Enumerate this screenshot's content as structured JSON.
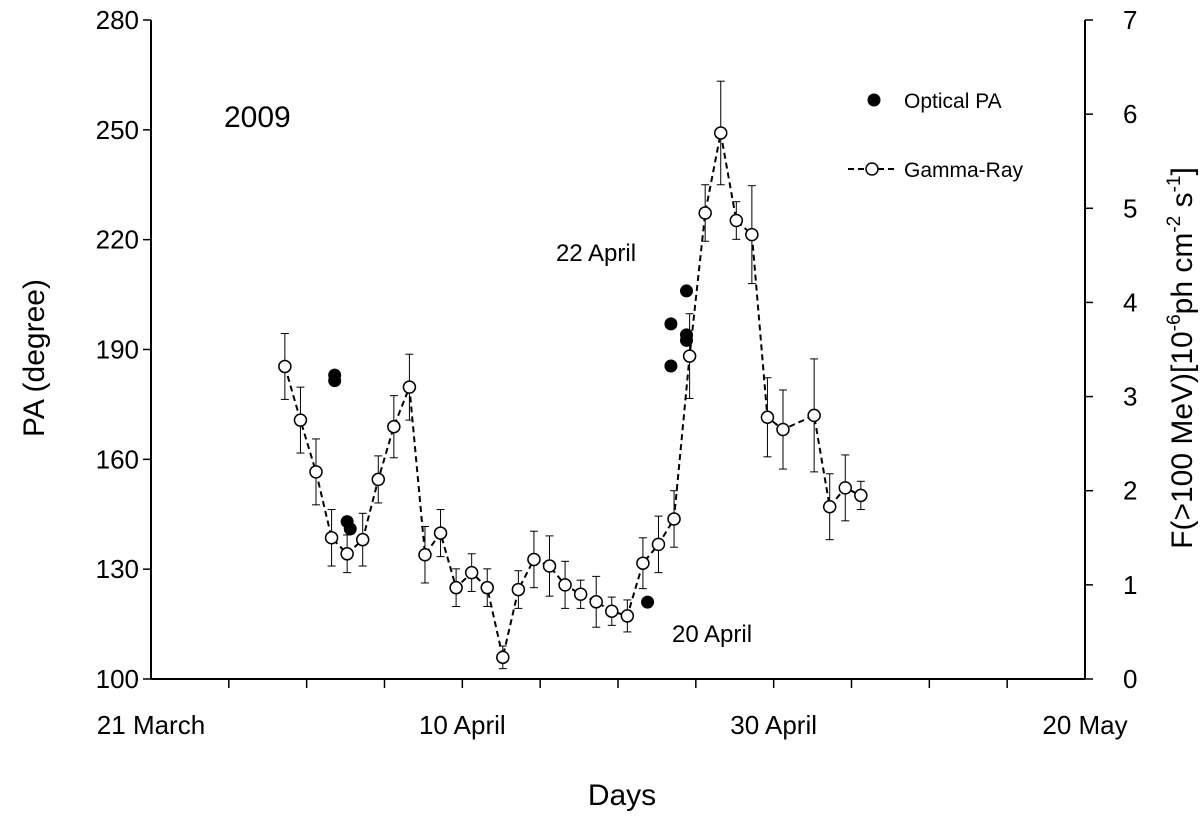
{
  "chart_data": {
    "type": "scatter",
    "year_label": "2009",
    "xlabel": "Days",
    "ylabel_left": "PA (degree)",
    "ylabel_right_parts": {
      "pre": "F(>100 MeV)[10",
      "exp1": "-6",
      "mid": "ph cm",
      "exp2": "-2",
      "mid2": " s",
      "exp3": "-1",
      "post": "]"
    },
    "x_axis": {
      "unit": "days since 21 March",
      "range": [
        0,
        60
      ],
      "minor_ticks": [
        5,
        10,
        15,
        20,
        25,
        30,
        35,
        40,
        45,
        50,
        55
      ],
      "tick_labels": [
        {
          "x": 0,
          "label": "21 March"
        },
        {
          "x": 20,
          "label": "10 April"
        },
        {
          "x": 40,
          "label": "30 April"
        },
        {
          "x": 60,
          "label": "20 May"
        }
      ]
    },
    "y_left": {
      "range": [
        100,
        280
      ],
      "ticks": [
        100,
        130,
        160,
        190,
        220,
        250,
        280
      ]
    },
    "y_right": {
      "range": [
        0,
        7
      ],
      "ticks": [
        0,
        1,
        2,
        3,
        4,
        5,
        6,
        7
      ]
    },
    "legend": {
      "position": "top-right",
      "entries": [
        {
          "label": "Optical PA",
          "marker": "filled-circle"
        },
        {
          "label": "Gamma-Ray",
          "marker": "open-circle-dashed-line"
        }
      ]
    },
    "annotations": [
      {
        "text": "22 April",
        "near_x": 32
      },
      {
        "text": "20 April",
        "near_x": 30
      }
    ],
    "series": [
      {
        "name": "Optical PA",
        "axis": "left",
        "points": [
          {
            "x": 11.8,
            "y": 183
          },
          {
            "x": 11.8,
            "y": 181.5
          },
          {
            "x": 12.6,
            "y": 143
          },
          {
            "x": 12.8,
            "y": 141
          },
          {
            "x": 31.9,
            "y": 121
          },
          {
            "x": 33.4,
            "y": 197
          },
          {
            "x": 33.4,
            "y": 185.5
          },
          {
            "x": 34.4,
            "y": 206
          },
          {
            "x": 34.4,
            "y": 194
          },
          {
            "x": 34.4,
            "y": 192.5
          }
        ]
      },
      {
        "name": "Gamma-Ray",
        "axis": "right",
        "points": [
          {
            "x": 8.6,
            "y": 3.32,
            "err": 0.35
          },
          {
            "x": 9.6,
            "y": 2.75,
            "err": 0.35
          },
          {
            "x": 10.6,
            "y": 2.2,
            "err": 0.35
          },
          {
            "x": 11.6,
            "y": 1.5,
            "err": 0.3
          },
          {
            "x": 12.6,
            "y": 1.33,
            "err": 0.2
          },
          {
            "x": 13.6,
            "y": 1.48,
            "err": 0.28
          },
          {
            "x": 14.6,
            "y": 2.12,
            "err": 0.25
          },
          {
            "x": 15.6,
            "y": 2.68,
            "err": 0.33
          },
          {
            "x": 16.6,
            "y": 3.1,
            "err": 0.35
          },
          {
            "x": 17.6,
            "y": 1.32,
            "err": 0.3
          },
          {
            "x": 18.6,
            "y": 1.55,
            "err": 0.25
          },
          {
            "x": 19.6,
            "y": 0.97,
            "err": 0.2
          },
          {
            "x": 20.6,
            "y": 1.13,
            "err": 0.2
          },
          {
            "x": 21.6,
            "y": 0.97,
            "err": 0.2
          },
          {
            "x": 22.6,
            "y": 0.23,
            "err": 0.12
          },
          {
            "x": 23.6,
            "y": 0.95,
            "err": 0.2
          },
          {
            "x": 24.6,
            "y": 1.27,
            "err": 0.3
          },
          {
            "x": 25.6,
            "y": 1.2,
            "err": 0.32
          },
          {
            "x": 26.6,
            "y": 1.0,
            "err": 0.25
          },
          {
            "x": 27.6,
            "y": 0.9,
            "err": 0.15
          },
          {
            "x": 28.6,
            "y": 0.82,
            "err": 0.27
          },
          {
            "x": 29.6,
            "y": 0.72,
            "err": 0.15
          },
          {
            "x": 30.6,
            "y": 0.67,
            "err": 0.17
          },
          {
            "x": 31.6,
            "y": 1.23,
            "err": 0.27
          },
          {
            "x": 32.6,
            "y": 1.43,
            "err": 0.3
          },
          {
            "x": 33.6,
            "y": 1.7,
            "err": 0.3
          },
          {
            "x": 34.6,
            "y": 3.43,
            "err": 0.45
          },
          {
            "x": 35.6,
            "y": 4.95,
            "err": 0.3
          },
          {
            "x": 36.6,
            "y": 5.8,
            "err": 0.55
          },
          {
            "x": 37.6,
            "y": 4.87,
            "err": 0.2
          },
          {
            "x": 38.6,
            "y": 4.72,
            "err": 0.52
          },
          {
            "x": 39.6,
            "y": 2.78,
            "err": 0.42
          },
          {
            "x": 40.6,
            "y": 2.65,
            "err": 0.42
          },
          {
            "x": 42.6,
            "y": 2.8,
            "err": 0.6
          },
          {
            "x": 43.6,
            "y": 1.83,
            "err": 0.35
          },
          {
            "x": 44.6,
            "y": 2.03,
            "err": 0.35
          },
          {
            "x": 45.6,
            "y": 1.95,
            "err": 0.15
          }
        ]
      }
    ]
  }
}
